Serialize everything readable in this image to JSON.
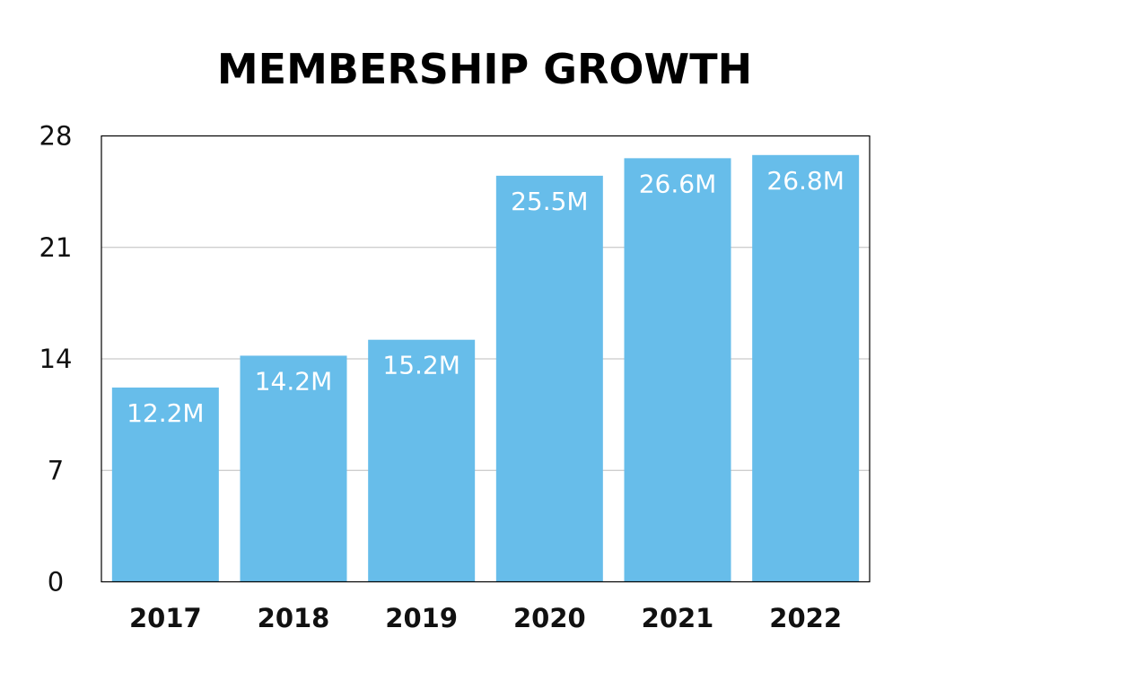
{
  "chart_data": {
    "type": "bar",
    "title": "MEMBERSHIP GROWTH",
    "xlabel": "",
    "ylabel": "",
    "categories": [
      "2017",
      "2018",
      "2019",
      "2020",
      "2021",
      "2022"
    ],
    "values": [
      12.2,
      14.2,
      15.2,
      25.5,
      26.6,
      26.8
    ],
    "data_labels": [
      "12.2M",
      "14.2M",
      "15.2M",
      "25.5M",
      "26.6M",
      "26.8M"
    ],
    "ylim": [
      0,
      28
    ],
    "yticks": [
      0,
      7,
      14,
      21,
      28
    ],
    "ytick_labels": [
      "0",
      "7",
      "14",
      "21",
      "28"
    ],
    "grid": true,
    "legend": "none",
    "bar_color": "#67bdea",
    "label_color": "#ffffff"
  }
}
